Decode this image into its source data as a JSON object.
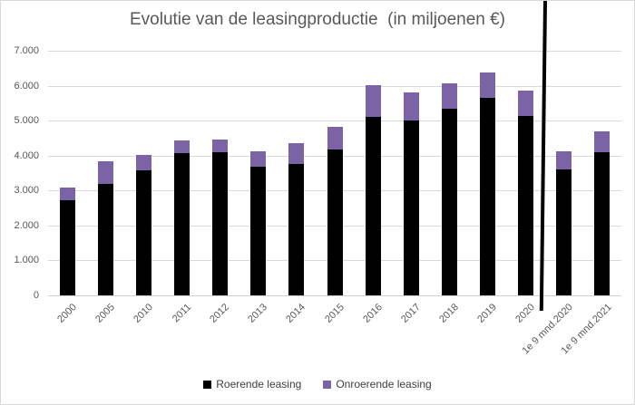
{
  "chart_data": {
    "type": "bar",
    "stacked": true,
    "title": "Evolutie van de leasingproductie  (in miljoenen €)",
    "categories": [
      "2000",
      "2005",
      "2010",
      "2011",
      "2012",
      "2013",
      "2014",
      "2015",
      "2016",
      "2017",
      "2018",
      "2019",
      "2020",
      "1e 9 mnd.2020",
      "1e 9 mnd.2021"
    ],
    "series": [
      {
        "name": "Roerende leasing",
        "color": "#000000",
        "values": [
          2720,
          3200,
          3580,
          4080,
          4100,
          3670,
          3760,
          4180,
          5110,
          5010,
          5340,
          5640,
          5130,
          3610,
          4100
        ]
      },
      {
        "name": "Onroerende leasing",
        "color": "#7b64a5",
        "values": [
          370,
          640,
          430,
          350,
          350,
          440,
          590,
          630,
          900,
          800,
          730,
          730,
          720,
          510,
          600
        ]
      }
    ],
    "totals": [
      3090,
      3840,
      4010,
      4430,
      4450,
      4110,
      4350,
      4810,
      6010,
      5810,
      6070,
      6370,
      5850,
      4120,
      4700
    ],
    "ylim": [
      0,
      7000
    ],
    "ytick_interval": 1000,
    "ytick_labels": [
      "0",
      "1.000",
      "2.000",
      "3.000",
      "4.000",
      "5.000",
      "6.000",
      "7.000"
    ],
    "xlabel": "",
    "ylabel": "",
    "grid": "horizontal",
    "legend_position": "bottom",
    "annotations": {
      "divider_between": [
        "2020",
        "1e 9 mnd.2020"
      ]
    }
  },
  "colors": {
    "text": "#595959",
    "legend_text": "#404040",
    "gridline": "#d9d9d9",
    "divider": "#000000",
    "background": "#ffffff"
  }
}
